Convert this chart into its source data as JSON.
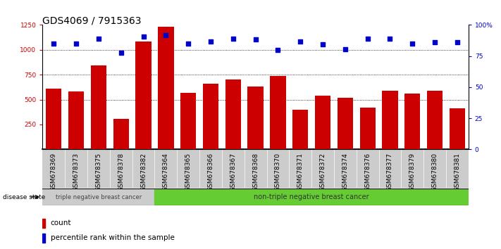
{
  "title": "GDS4069 / 7915363",
  "samples": [
    "GSM678369",
    "GSM678373",
    "GSM678375",
    "GSM678378",
    "GSM678382",
    "GSM678364",
    "GSM678365",
    "GSM678366",
    "GSM678367",
    "GSM678368",
    "GSM678370",
    "GSM678371",
    "GSM678372",
    "GSM678374",
    "GSM678376",
    "GSM678377",
    "GSM678379",
    "GSM678380",
    "GSM678381"
  ],
  "counts": [
    610,
    580,
    840,
    310,
    1080,
    1230,
    570,
    660,
    700,
    630,
    740,
    400,
    540,
    520,
    420,
    590,
    560,
    590,
    410
  ],
  "percentiles": [
    1065,
    1060,
    1110,
    970,
    1130,
    1145,
    1060,
    1080,
    1115,
    1105,
    1000,
    1080,
    1055,
    1005,
    1110,
    1115,
    1060,
    1075,
    1075
  ],
  "group1_label": "triple negative breast cancer",
  "group2_label": "non-triple negative breast cancer",
  "group1_count": 5,
  "group2_count": 14,
  "legend_count": "count",
  "legend_pct": "percentile rank within the sample",
  "disease_state_label": "disease state",
  "bar_color": "#cc0000",
  "dot_color": "#0000cc",
  "xtick_bg": "#cccccc",
  "group1_bg": "#cccccc",
  "group2_bg": "#66cc33",
  "ylim_left": [
    0,
    1250
  ],
  "yticks_left": [
    250,
    500,
    750,
    1000,
    1250
  ],
  "yticks_right": [
    0,
    25,
    50,
    75,
    100
  ],
  "grid_lines": [
    500,
    750,
    1000
  ],
  "title_fontsize": 10,
  "tick_fontsize": 6.5,
  "label_fontsize": 7.5
}
